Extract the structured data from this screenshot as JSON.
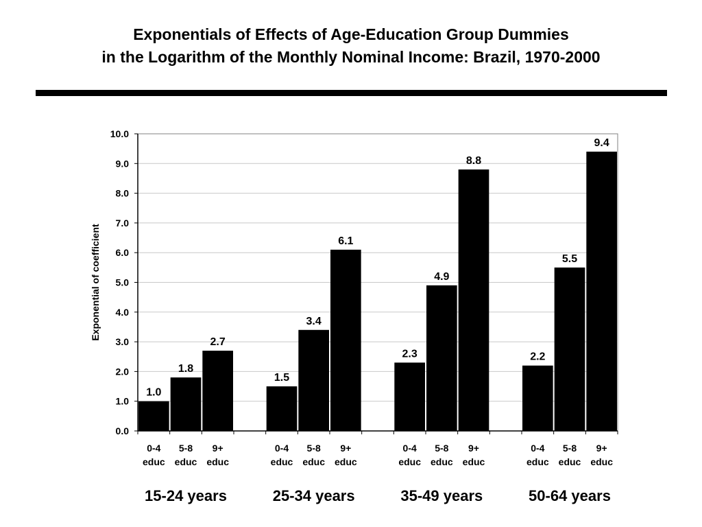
{
  "chart_data": {
    "type": "bar",
    "title": "Exponentials of Effects of Age-Education Group Dummies",
    "subtitle": "in the Logarithm of the Monthly Nominal Income: Brazil, 1970-2000",
    "ylabel": "Exponential of coefficient",
    "ylim": [
      0,
      10
    ],
    "yticks": [
      "0.0",
      "1.0",
      "2.0",
      "3.0",
      "4.0",
      "5.0",
      "6.0",
      "7.0",
      "8.0",
      "9.0",
      "10.0"
    ],
    "grid": true,
    "groups": [
      {
        "label": "15-24 years",
        "bars": [
          {
            "cat1": "0-4",
            "cat2": "educ",
            "value": 1.0,
            "label": "1.0"
          },
          {
            "cat1": "5-8",
            "cat2": "educ",
            "value": 1.8,
            "label": "1.8"
          },
          {
            "cat1": "9+",
            "cat2": "educ",
            "value": 2.7,
            "label": "2.7"
          }
        ]
      },
      {
        "label": "25-34 years",
        "bars": [
          {
            "cat1": "0-4",
            "cat2": "educ",
            "value": 1.5,
            "label": "1.5"
          },
          {
            "cat1": "5-8",
            "cat2": "educ",
            "value": 3.4,
            "label": "3.4"
          },
          {
            "cat1": "9+",
            "cat2": "educ",
            "value": 6.1,
            "label": "6.1"
          }
        ]
      },
      {
        "label": "35-49 years",
        "bars": [
          {
            "cat1": "0-4",
            "cat2": "educ",
            "value": 2.3,
            "label": "2.3"
          },
          {
            "cat1": "5-8",
            "cat2": "educ",
            "value": 4.9,
            "label": "4.9"
          },
          {
            "cat1": "9+",
            "cat2": "educ",
            "value": 8.8,
            "label": "8.8"
          }
        ]
      },
      {
        "label": "50-64 years",
        "bars": [
          {
            "cat1": "0-4",
            "cat2": "educ",
            "value": 2.2,
            "label": "2.2"
          },
          {
            "cat1": "5-8",
            "cat2": "educ",
            "value": 5.5,
            "label": "5.5"
          },
          {
            "cat1": "9+",
            "cat2": "educ",
            "value": 9.4,
            "label": "9.4"
          }
        ]
      }
    ],
    "bar_color": "#000000",
    "grid_color": "#c8c8c8"
  }
}
